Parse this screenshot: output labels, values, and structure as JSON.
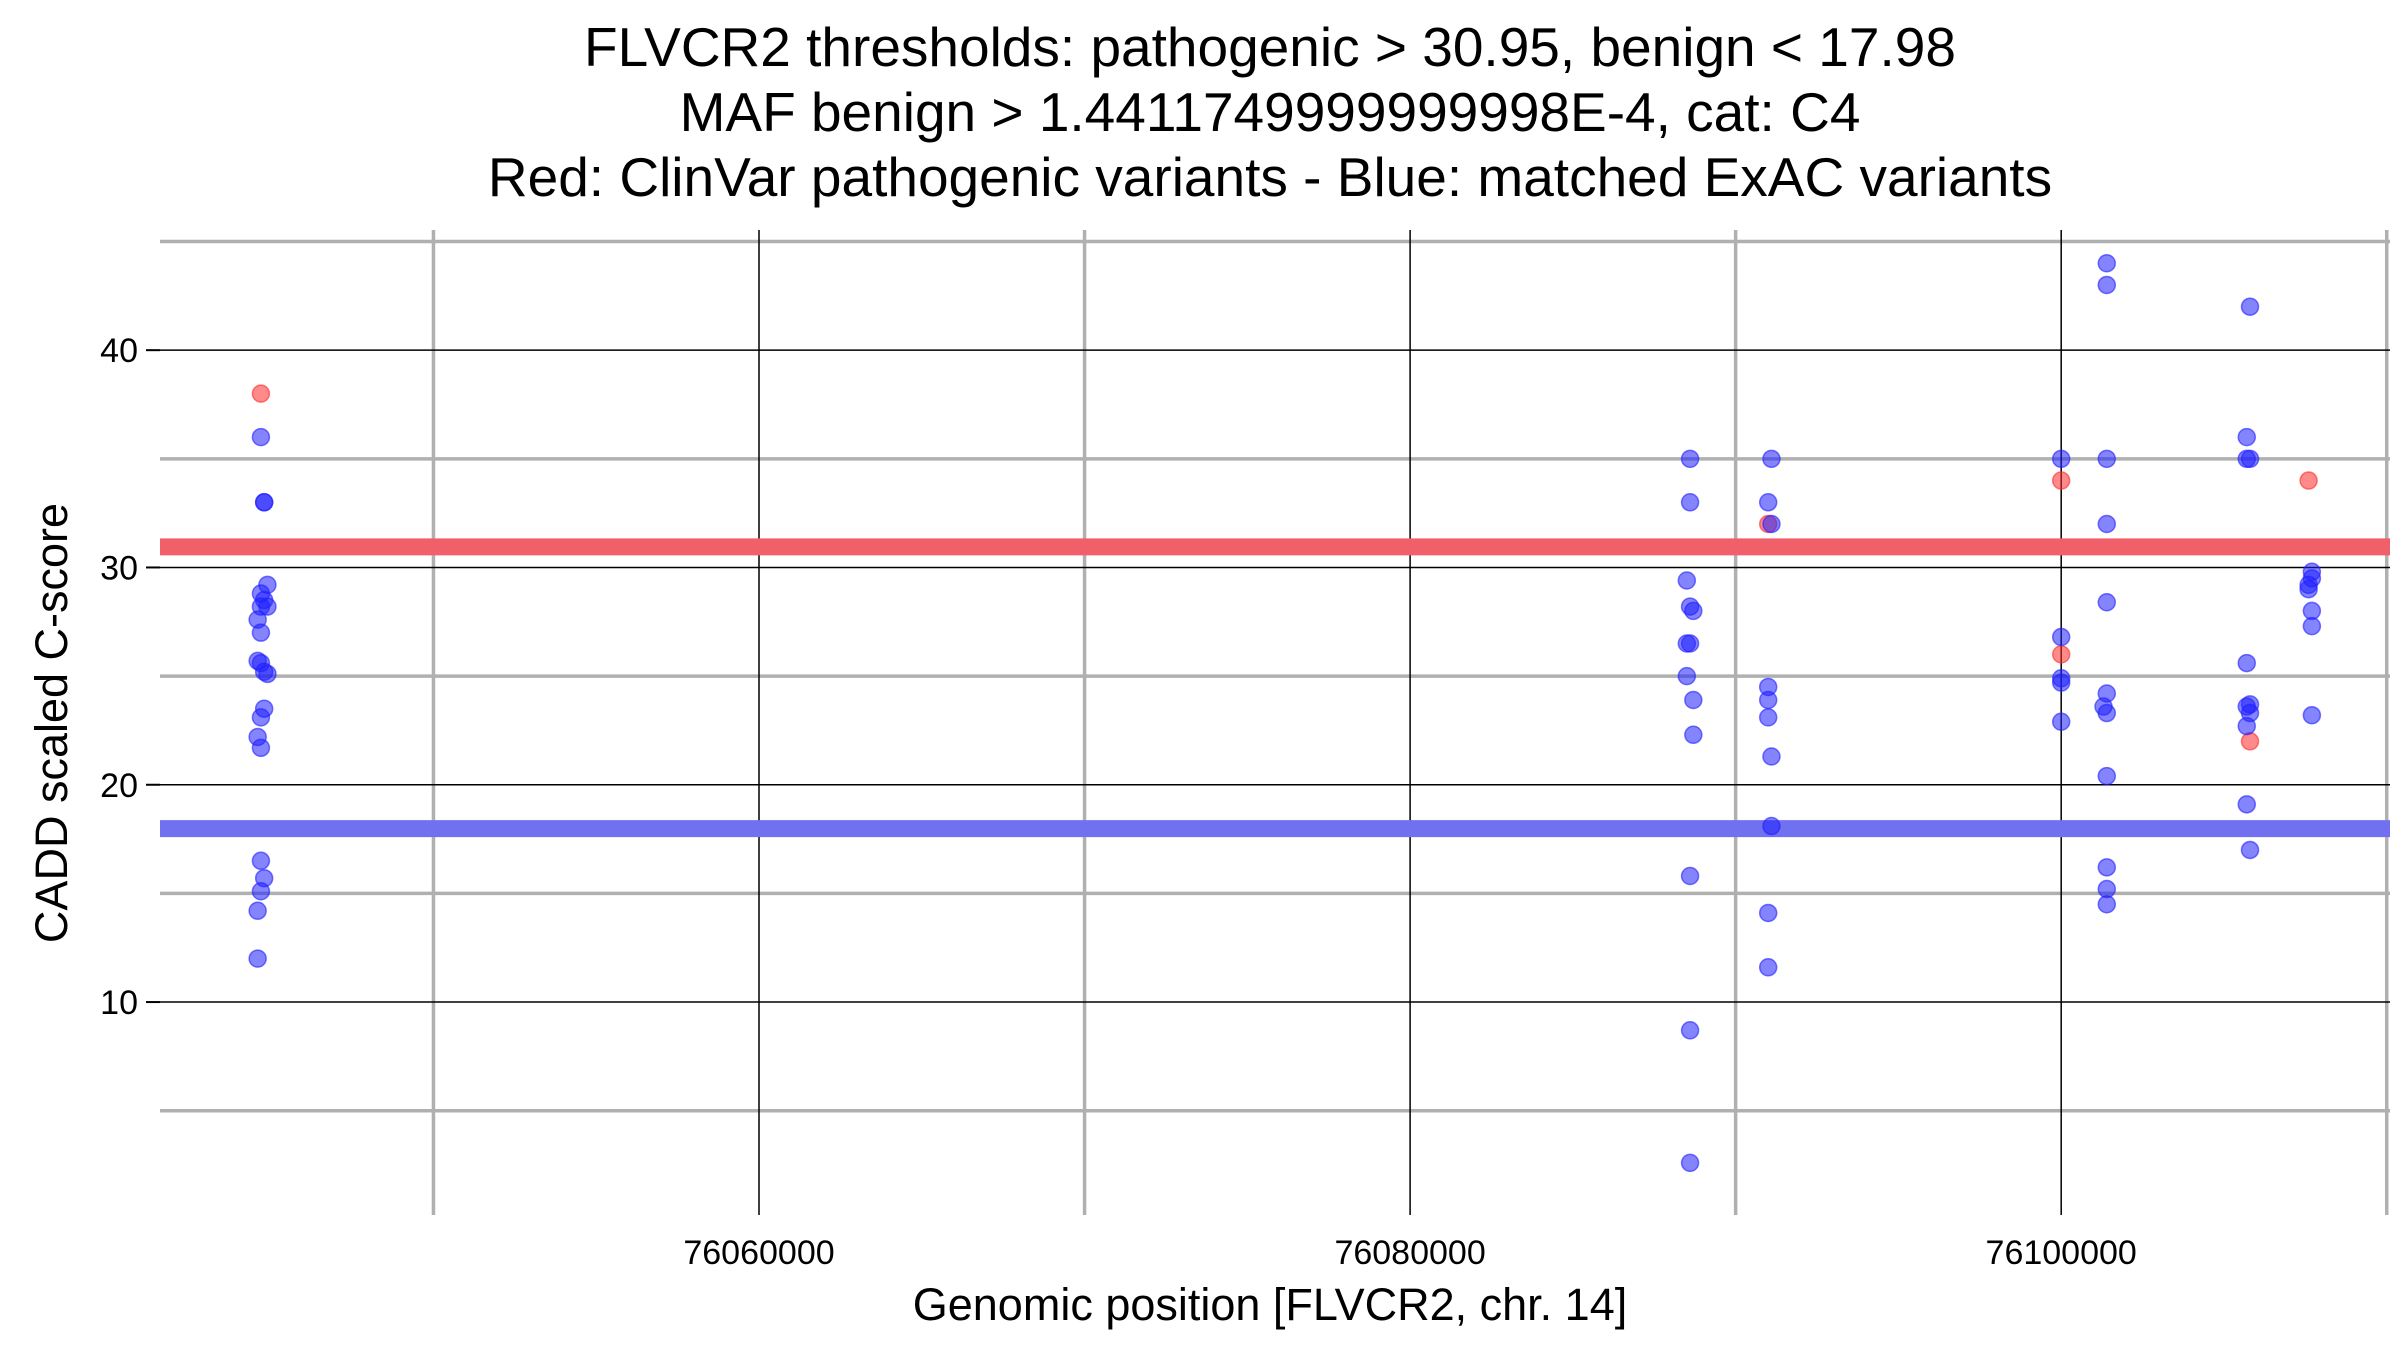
{
  "chart_data": {
    "type": "scatter",
    "title_lines": [
      "FLVCR2 thresholds: pathogenic > 30.95, benign < 17.98",
      "MAF benign > 1.4411749999999998E-4, cat: C4",
      "Red: ClinVar pathogenic variants - Blue: matched ExAC variants"
    ],
    "xlabel": "Genomic position [FLVCR2, chr. 14]",
    "ylabel": "CADD scaled C-score",
    "xlim": [
      76041600,
      76110100
    ],
    "ylim": [
      0.2,
      45.3
    ],
    "x_ticks": [
      76060000,
      76080000,
      76100000
    ],
    "x_tick_labels": [
      "76060000",
      "76080000",
      "76100000"
    ],
    "x_minor_gridlines": [
      76050000,
      76070000,
      76090000,
      76110000
    ],
    "y_ticks": [
      10,
      20,
      30,
      40
    ],
    "y_tick_labels": [
      "10",
      "20",
      "30",
      "40"
    ],
    "y_minor_gridlines": [
      5,
      15,
      25,
      35,
      45
    ],
    "thresholds": [
      {
        "name": "pathogenic",
        "value": 30.95,
        "color": "#f0606a"
      },
      {
        "name": "benign",
        "value": 17.98,
        "color": "#7070f0"
      }
    ],
    "colors": {
      "pathogenic": "#ff2a2a",
      "benign": "#1f1fff",
      "major_grid": "#000000",
      "minor_grid": "#b0b0b0"
    },
    "series": [
      {
        "name": "ClinVar pathogenic variants",
        "color": "#ff2a2a",
        "points": [
          [
            76044700,
            38.0
          ],
          [
            76091000,
            32.0
          ],
          [
            76100000,
            34.0
          ],
          [
            76100000,
            26.0
          ],
          [
            76105800,
            22.0
          ],
          [
            76107600,
            34.0
          ]
        ]
      },
      {
        "name": "matched ExAC variants",
        "color": "#1f1fff",
        "points": [
          [
            76044700,
            36.0
          ],
          [
            76044800,
            33.0
          ],
          [
            76044800,
            33.0
          ],
          [
            76044900,
            29.2
          ],
          [
            76044700,
            28.8
          ],
          [
            76044800,
            28.5
          ],
          [
            76044700,
            28.2
          ],
          [
            76044900,
            28.2
          ],
          [
            76044600,
            27.6
          ],
          [
            76044700,
            27.0
          ],
          [
            76044600,
            25.7
          ],
          [
            76044700,
            25.6
          ],
          [
            76044800,
            25.2
          ],
          [
            76044900,
            25.1
          ],
          [
            76044800,
            23.5
          ],
          [
            76044700,
            23.1
          ],
          [
            76044600,
            22.2
          ],
          [
            76044700,
            21.7
          ],
          [
            76044700,
            16.5
          ],
          [
            76044800,
            15.7
          ],
          [
            76044700,
            15.1
          ],
          [
            76044600,
            14.2
          ],
          [
            76044600,
            12.0
          ],
          [
            76088600,
            35.0
          ],
          [
            76088600,
            33.0
          ],
          [
            76088500,
            29.4
          ],
          [
            76088600,
            28.2
          ],
          [
            76088700,
            28.0
          ],
          [
            76088500,
            26.5
          ],
          [
            76088600,
            26.5
          ],
          [
            76088500,
            25.0
          ],
          [
            76088700,
            23.9
          ],
          [
            76088700,
            22.3
          ],
          [
            76088600,
            15.8
          ],
          [
            76088600,
            8.7
          ],
          [
            76088600,
            2.6
          ],
          [
            76091100,
            35.0
          ],
          [
            76091000,
            33.0
          ],
          [
            76091100,
            32.0
          ],
          [
            76091000,
            24.5
          ],
          [
            76091000,
            23.9
          ],
          [
            76091000,
            23.1
          ],
          [
            76091100,
            21.3
          ],
          [
            76091100,
            18.1
          ],
          [
            76091000,
            14.1
          ],
          [
            76091000,
            11.6
          ],
          [
            76100000,
            35.0
          ],
          [
            76100000,
            26.8
          ],
          [
            76100000,
            24.9
          ],
          [
            76100000,
            24.7
          ],
          [
            76100000,
            22.9
          ],
          [
            76101400,
            44.0
          ],
          [
            76101400,
            43.0
          ],
          [
            76101400,
            35.0
          ],
          [
            76101400,
            32.0
          ],
          [
            76101400,
            28.4
          ],
          [
            76101400,
            24.2
          ],
          [
            76101300,
            23.6
          ],
          [
            76101400,
            23.3
          ],
          [
            76101400,
            20.4
          ],
          [
            76101400,
            16.2
          ],
          [
            76101400,
            15.2
          ],
          [
            76101400,
            14.5
          ],
          [
            76105800,
            42.0
          ],
          [
            76105700,
            36.0
          ],
          [
            76105700,
            35.0
          ],
          [
            76105800,
            35.0
          ],
          [
            76105700,
            25.6
          ],
          [
            76105800,
            23.7
          ],
          [
            76105700,
            23.6
          ],
          [
            76105800,
            23.3
          ],
          [
            76105700,
            22.7
          ],
          [
            76105700,
            19.1
          ],
          [
            76105800,
            17.0
          ],
          [
            76107700,
            29.8
          ],
          [
            76107700,
            29.5
          ],
          [
            76107600,
            29.2
          ],
          [
            76107600,
            29.0
          ],
          [
            76107700,
            28.0
          ],
          [
            76107700,
            27.3
          ],
          [
            76107700,
            23.2
          ]
        ]
      }
    ]
  }
}
